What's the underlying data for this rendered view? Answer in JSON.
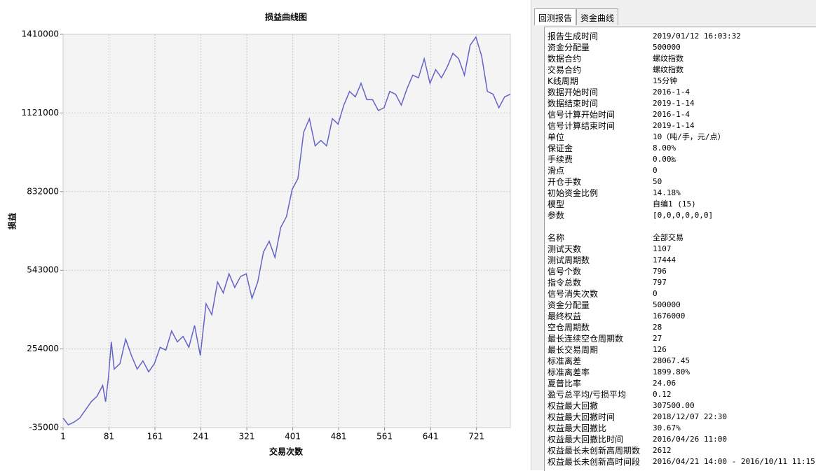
{
  "chart_data": {
    "type": "line",
    "title": "损益曲线图",
    "x_label": "交易次数",
    "y_label": "损益",
    "color": "#6464c8",
    "grid": true,
    "xlim": [
      1,
      780
    ],
    "xticks": [
      1,
      81,
      161,
      241,
      321,
      401,
      481,
      561,
      641,
      721
    ],
    "ylim": [
      -35000,
      1410000
    ],
    "yticks": [
      -35000,
      254000,
      543000,
      832000,
      1121000,
      1410000
    ],
    "x": [
      1,
      10,
      20,
      30,
      40,
      50,
      60,
      70,
      75,
      80,
      85,
      90,
      100,
      110,
      120,
      130,
      140,
      150,
      160,
      170,
      180,
      190,
      200,
      210,
      220,
      230,
      240,
      250,
      260,
      270,
      280,
      290,
      300,
      310,
      320,
      330,
      340,
      350,
      360,
      370,
      380,
      390,
      400,
      410,
      420,
      430,
      440,
      450,
      460,
      470,
      480,
      490,
      500,
      510,
      520,
      530,
      540,
      550,
      560,
      570,
      580,
      590,
      600,
      610,
      620,
      630,
      640,
      650,
      660,
      670,
      680,
      690,
      700,
      710,
      720,
      730,
      740,
      750,
      760,
      770,
      780
    ],
    "values": [
      0,
      -25000,
      -15000,
      0,
      30000,
      60000,
      80000,
      120000,
      60000,
      150000,
      280000,
      180000,
      200000,
      290000,
      230000,
      180000,
      210000,
      170000,
      200000,
      260000,
      250000,
      320000,
      280000,
      300000,
      260000,
      340000,
      230000,
      420000,
      380000,
      500000,
      460000,
      530000,
      480000,
      520000,
      530000,
      440000,
      500000,
      610000,
      650000,
      590000,
      700000,
      740000,
      840000,
      880000,
      1050000,
      1100000,
      1000000,
      1020000,
      1000000,
      1100000,
      1080000,
      1150000,
      1200000,
      1180000,
      1230000,
      1170000,
      1170000,
      1130000,
      1140000,
      1200000,
      1190000,
      1150000,
      1210000,
      1260000,
      1250000,
      1320000,
      1230000,
      1280000,
      1250000,
      1290000,
      1340000,
      1320000,
      1260000,
      1370000,
      1400000,
      1330000,
      1200000,
      1190000,
      1140000,
      1180000,
      1190000
    ]
  },
  "report": {
    "tabs": [
      "回测报告",
      "资金曲线"
    ],
    "section1": [
      [
        "报告生成时间",
        "2019/01/12 16:03:32"
      ],
      [
        "资金分配量",
        "500000"
      ],
      [
        "数据合约",
        "螺纹指数"
      ],
      [
        "交易合约",
        "螺纹指数"
      ],
      [
        "K线周期",
        "15分钟"
      ],
      [
        "数据开始时间",
        "2016-1-4"
      ],
      [
        "数据结束时间",
        "2019-1-14"
      ],
      [
        "信号计算开始时间",
        "2016-1-4"
      ],
      [
        "信号计算结束时间",
        "2019-1-14"
      ],
      [
        "单位",
        "10（吨/手，元/点）"
      ],
      [
        "保证金",
        "8.00%"
      ],
      [
        "手续费",
        "0.00‰"
      ],
      [
        "滑点",
        "0"
      ],
      [
        "开仓手数",
        "50"
      ],
      [
        "初始资金比例",
        "14.18%"
      ],
      [
        "模型",
        "自编1 (15)"
      ],
      [
        "参数",
        "[0,0,0,0,0,0]"
      ]
    ],
    "section2": [
      [
        "名称",
        "全部交易"
      ],
      [
        "测试天数",
        "1107"
      ],
      [
        "测试周期数",
        "17444"
      ],
      [
        "信号个数",
        "796"
      ],
      [
        "指令总数",
        "797"
      ],
      [
        "信号消失次数",
        "0"
      ],
      [
        "资金分配量",
        "500000"
      ],
      [
        "最终权益",
        "1676000"
      ],
      [
        "空仓周期数",
        "28"
      ],
      [
        "最长连续空仓周期数",
        "27"
      ],
      [
        "最长交易周期",
        "126"
      ],
      [
        "标准离差",
        "28067.45"
      ],
      [
        "标准离差率",
        "1899.80%"
      ],
      [
        "夏普比率",
        "24.06"
      ],
      [
        "盈亏总平均/亏损平均",
        "0.12"
      ],
      [
        "权益最大回撤",
        "307500.00"
      ],
      [
        "权益最大回撤时间",
        "2018/12/07 22:30"
      ],
      [
        "权益最大回撤比",
        "30.67%"
      ],
      [
        "权益最大回撤比时间",
        "2016/04/26 11:00"
      ],
      [
        "权益最长未创新高周期数",
        "2612"
      ],
      [
        "权益最长未创新高时间段",
        "2016/04/21 14:00 - 2016/10/11 11:15"
      ]
    ]
  }
}
